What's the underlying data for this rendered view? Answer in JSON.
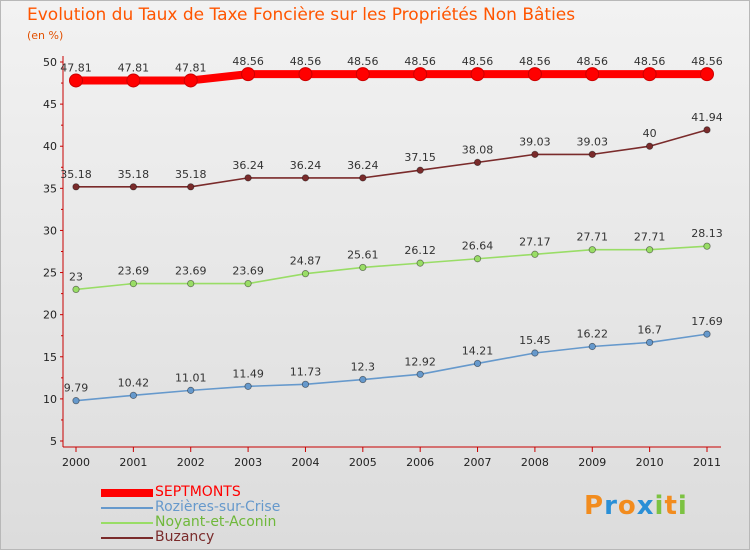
{
  "chart_data": {
    "type": "line",
    "title": "Evolution du Taux de Taxe Foncière sur les Propriétés Non Bâties",
    "ylabel": "(en %)",
    "xlabel": "",
    "x": [
      "2000",
      "2001",
      "2002",
      "2003",
      "2004",
      "2005",
      "2006",
      "2007",
      "2008",
      "2009",
      "2010",
      "2011"
    ],
    "ylim": [
      5,
      50
    ],
    "yticks": [
      5,
      10,
      15,
      20,
      25,
      30,
      35,
      40,
      45,
      50
    ],
    "grid": false,
    "legend_position": "bottom-left",
    "series": [
      {
        "name": "SEPTMONTS",
        "color": "#ff0000",
        "values": [
          47.81,
          47.81,
          47.81,
          48.56,
          48.56,
          48.56,
          48.56,
          48.56,
          48.56,
          48.56,
          48.56,
          48.56
        ],
        "labels": [
          "47.81",
          "47.81",
          "47.81",
          "48.56",
          "48.56",
          "48.56",
          "48.56",
          "48.56",
          "48.56",
          "48.56",
          "48.56",
          "48.56"
        ]
      },
      {
        "name": "Rozières-sur-Crise",
        "color": "#6699cc",
        "values": [
          9.79,
          10.42,
          11.01,
          11.49,
          11.73,
          12.3,
          12.92,
          14.21,
          15.45,
          16.22,
          16.7,
          17.69
        ],
        "labels": [
          "9.79",
          "10.42",
          "11.01",
          "11.49",
          "11.73",
          "12.3",
          "12.92",
          "14.21",
          "15.45",
          "16.22",
          "16.7",
          "17.69"
        ]
      },
      {
        "name": "Noyant-et-Aconin",
        "color": "#99dd66",
        "values": [
          23,
          23.69,
          23.69,
          23.69,
          24.87,
          25.61,
          26.12,
          26.64,
          27.17,
          27.71,
          27.71,
          28.13
        ],
        "labels": [
          "23",
          "23.69",
          "23.69",
          "23.69",
          "24.87",
          "25.61",
          "26.12",
          "26.64",
          "27.17",
          "27.71",
          "27.71",
          "28.13"
        ]
      },
      {
        "name": "Buzancy",
        "color": "#7a2b2b",
        "values": [
          35.18,
          35.18,
          35.18,
          36.24,
          36.24,
          36.24,
          37.15,
          38.08,
          39.03,
          39.03,
          40,
          41.94
        ],
        "labels": [
          "35.18",
          "35.18",
          "35.18",
          "36.24",
          "36.24",
          "36.24",
          "37.15",
          "38.08",
          "39.03",
          "39.03",
          "40",
          "41.94"
        ]
      }
    ]
  },
  "logo": {
    "text": "Proxiti",
    "letter_colors": [
      "#f28c1e",
      "#2a8fd6",
      "#f28c1e",
      "#2a8fd6",
      "#7cc242",
      "#f28c1e",
      "#7cc242"
    ]
  }
}
